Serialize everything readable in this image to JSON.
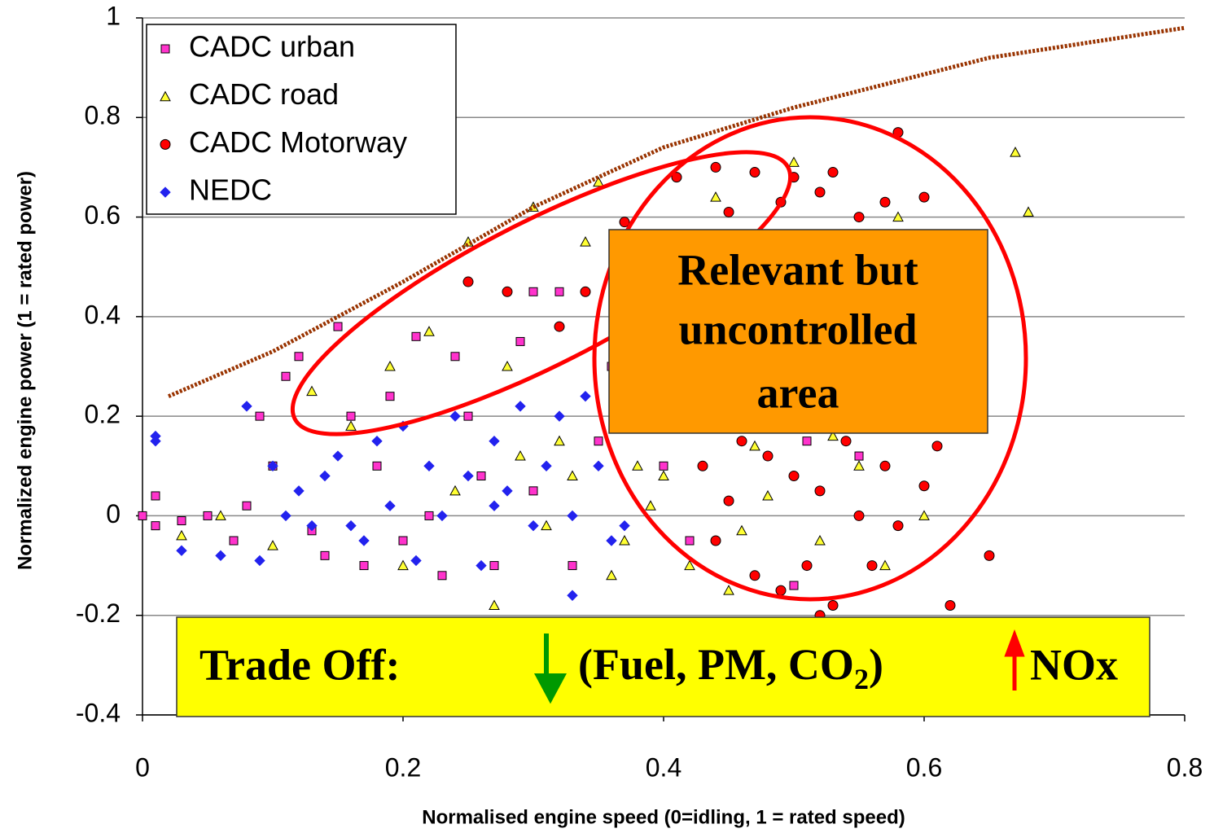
{
  "chart_data": {
    "type": "scatter",
    "x_label": "Normalised engine speed (0=idling, 1 = rated speed)",
    "y_label": "Normalized engine power (1 = rated power)",
    "xlim": [
      0,
      0.8
    ],
    "ylim": [
      -0.4,
      1
    ],
    "xticks": [
      0,
      0.2,
      0.4,
      0.6,
      0.8
    ],
    "yticks": [
      -0.4,
      -0.2,
      0,
      0.2,
      0.4,
      0.6,
      0.8,
      1
    ],
    "grid": true,
    "legend": "upper left",
    "series": [
      {
        "name": "CADC urban",
        "color": "#ff33cc",
        "marker": "square",
        "x": [
          0,
          0.01,
          0.01,
          0.03,
          0.05,
          0.07,
          0.08,
          0.09,
          0.1,
          0.11,
          0.12,
          0.13,
          0.15,
          0.16,
          0.18,
          0.19,
          0.2,
          0.21,
          0.23,
          0.24,
          0.25,
          0.27,
          0.29,
          0.3,
          0.3,
          0.32,
          0.33,
          0.35,
          0.36,
          0.4,
          0.42,
          0.5,
          0.51,
          0.55,
          0.14,
          0.22,
          0.26,
          0.17
        ],
        "values": [
          0,
          0.04,
          -0.02,
          -0.01,
          0,
          -0.05,
          0.02,
          0.2,
          0.1,
          0.28,
          0.32,
          -0.03,
          0.38,
          0.2,
          0.1,
          0.24,
          -0.05,
          0.36,
          -0.12,
          0.32,
          0.2,
          -0.1,
          0.35,
          0.45,
          0.05,
          0.45,
          -0.1,
          0.15,
          0.3,
          0.1,
          -0.05,
          -0.14,
          0.15,
          0.12,
          -0.08,
          0,
          0.08,
          -0.1
        ]
      },
      {
        "name": "CADC road",
        "color": "#ffff33",
        "marker": "triangle",
        "x": [
          0.03,
          0.06,
          0.1,
          0.13,
          0.16,
          0.19,
          0.22,
          0.25,
          0.28,
          0.3,
          0.32,
          0.34,
          0.35,
          0.37,
          0.38,
          0.4,
          0.42,
          0.43,
          0.44,
          0.46,
          0.48,
          0.5,
          0.52,
          0.55,
          0.57,
          0.58,
          0.6,
          0.67,
          0.68,
          0.2,
          0.24,
          0.27,
          0.31,
          0.36,
          0.39,
          0.45,
          0.33,
          0.29,
          0.47,
          0.53
        ],
        "values": [
          -0.04,
          0,
          -0.06,
          0.25,
          0.18,
          0.3,
          0.37,
          0.55,
          0.3,
          0.62,
          0.15,
          0.55,
          0.67,
          -0.05,
          0.1,
          0.08,
          -0.1,
          0.2,
          0.64,
          -0.03,
          0.04,
          0.71,
          -0.05,
          0.1,
          -0.1,
          0.6,
          0,
          0.73,
          0.61,
          -0.1,
          0.05,
          -0.18,
          -0.02,
          -0.12,
          0.02,
          -0.15,
          0.08,
          0.12,
          0.14,
          0.16
        ]
      },
      {
        "name": "CADC Motorway",
        "color": "#ff0000",
        "marker": "circle",
        "x": [
          0.25,
          0.28,
          0.32,
          0.34,
          0.37,
          0.41,
          0.41,
          0.44,
          0.45,
          0.47,
          0.49,
          0.5,
          0.52,
          0.53,
          0.55,
          0.57,
          0.58,
          0.6,
          0.63,
          0.64,
          0.65,
          0.46,
          0.48,
          0.5,
          0.52,
          0.54,
          0.55,
          0.57,
          0.59,
          0.61,
          0.43,
          0.44,
          0.47,
          0.49,
          0.53,
          0.56,
          0.62,
          0.52,
          0.6,
          0.58,
          0.51,
          0.45
        ],
        "values": [
          0.47,
          0.45,
          0.38,
          0.45,
          0.59,
          0.37,
          0.68,
          0.7,
          0.61,
          0.69,
          0.63,
          0.68,
          0.65,
          0.69,
          0.6,
          0.63,
          0.77,
          0.64,
          0.4,
          0.2,
          -0.08,
          0.15,
          0.12,
          0.08,
          0.05,
          0.15,
          0,
          0.1,
          0.18,
          0.14,
          0.1,
          -0.05,
          -0.12,
          -0.15,
          -0.18,
          -0.1,
          -0.18,
          -0.2,
          0.06,
          -0.02,
          -0.1,
          0.03
        ]
      },
      {
        "name": "NEDC",
        "color": "#2222ee",
        "marker": "diamond",
        "x": [
          0.01,
          0.01,
          0.03,
          0.06,
          0.08,
          0.09,
          0.1,
          0.12,
          0.13,
          0.15,
          0.17,
          0.18,
          0.19,
          0.2,
          0.21,
          0.22,
          0.23,
          0.24,
          0.25,
          0.26,
          0.27,
          0.28,
          0.29,
          0.3,
          0.31,
          0.32,
          0.33,
          0.34,
          0.35,
          0.36,
          0.37,
          0.33,
          0.14,
          0.16,
          0.27,
          0.11
        ],
        "values": [
          0.16,
          0.15,
          -0.07,
          -0.08,
          0.22,
          -0.09,
          0.1,
          0.05,
          -0.02,
          0.12,
          -0.05,
          0.15,
          0.02,
          0.18,
          -0.09,
          0.1,
          0,
          0.2,
          0.08,
          -0.1,
          0.15,
          0.05,
          0.22,
          -0.02,
          0.1,
          0.2,
          0,
          0.24,
          0.1,
          -0.05,
          -0.02,
          -0.16,
          0.08,
          -0.02,
          0.02,
          0
        ]
      }
    ],
    "lines": [
      {
        "color": "#993300",
        "style": "dotted",
        "x": [
          0.02,
          0.1,
          0.2,
          0.3,
          0.4,
          0.5,
          0.65,
          0.8
        ],
        "values": [
          0.24,
          0.33,
          0.47,
          0.62,
          0.74,
          0.82,
          0.92,
          0.98
        ]
      }
    ],
    "annotations": {
      "area_box": [
        "Relevant but",
        "uncontrolled",
        "area"
      ],
      "trade_off": {
        "label": "Trade Off:",
        "down": [
          "(Fuel, PM, CO",
          "2",
          ")"
        ],
        "up": "NOx"
      }
    }
  }
}
